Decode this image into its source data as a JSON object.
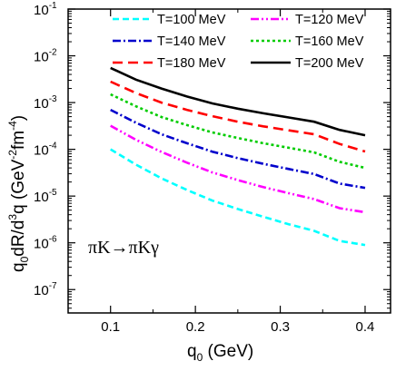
{
  "chart_data": {
    "type": "line",
    "xlabel": "q",
    "xlabel_sub": "0",
    "xlabel_unit": " (GeV)",
    "ylabel": "q",
    "ylabel_sub": "0",
    "ylabel_mid": "dR/d",
    "ylabel_sup3": "3",
    "ylabel_q": "q (GeV",
    "ylabel_sup_a": "-2",
    "ylabel_fm": "fm",
    "ylabel_sup_b": "-4",
    "ylabel_close": ")",
    "xlim": [
      0.05,
      0.43
    ],
    "ylim_log10": [
      -7.5,
      -1
    ],
    "log_y": true,
    "x_ticks": [
      0.1,
      0.2,
      0.3,
      0.4
    ],
    "x_tick_labels": [
      "0.1",
      "0.2",
      "0.3",
      "0.4"
    ],
    "y_ticks": [
      -7,
      -6,
      -5,
      -4,
      -3,
      -2,
      -1
    ],
    "y_tick_base": "10",
    "y_tick_exps": [
      "-7",
      "-6",
      "-5",
      "-4",
      "-3",
      "-2",
      "-1"
    ],
    "annotation": "πK→πKγ",
    "legend_position": "top-right",
    "x": [
      0.1,
      0.13,
      0.16,
      0.19,
      0.22,
      0.25,
      0.28,
      0.31,
      0.34,
      0.37,
      0.4
    ],
    "series": [
      {
        "name": "T=100 MeV",
        "color": "#00ffff",
        "dash": "dash",
        "values": [
          0.0001,
          4.7e-05,
          2.4e-05,
          1.35e-05,
          8e-06,
          5.3e-06,
          3.6e-06,
          2.5e-06,
          1.8e-06,
          1.1e-06,
          9e-07
        ]
      },
      {
        "name": "T=120 MeV",
        "color": "#ff00ff",
        "dash": "dashdotdot",
        "values": [
          0.00032,
          0.00016,
          8.8e-05,
          5.2e-05,
          3.2e-05,
          2.2e-05,
          1.55e-05,
          1.15e-05,
          8.6e-06,
          5.5e-06,
          4.5e-06
        ]
      },
      {
        "name": "T=140 MeV",
        "color": "#0000cc",
        "dash": "dashdot",
        "values": [
          0.0007,
          0.00037,
          0.00021,
          0.000135,
          8.9e-05,
          6.5e-05,
          4.9e-05,
          3.8e-05,
          2.95e-05,
          1.85e-05,
          1.5e-05
        ]
      },
      {
        "name": "T=160 MeV",
        "color": "#00cc00",
        "dash": "dot",
        "values": [
          0.0015,
          0.00083,
          0.00049,
          0.00033,
          0.00023,
          0.000175,
          0.000135,
          0.000108,
          8.6e-05,
          5.4e-05,
          4e-05
        ]
      },
      {
        "name": "T=180 MeV",
        "color": "#ff0000",
        "dash": "longdash",
        "values": [
          0.0028,
          0.0016,
          0.001,
          0.0007,
          0.00051,
          0.00039,
          0.00031,
          0.000255,
          0.00021,
          0.00013,
          9e-05
        ]
      },
      {
        "name": "T=200 MeV",
        "color": "#000000",
        "dash": "solid",
        "values": [
          0.0055,
          0.0031,
          0.002,
          0.00135,
          0.00096,
          0.00074,
          0.00059,
          0.00048,
          0.00039,
          0.00026,
          0.0002
        ]
      }
    ]
  }
}
